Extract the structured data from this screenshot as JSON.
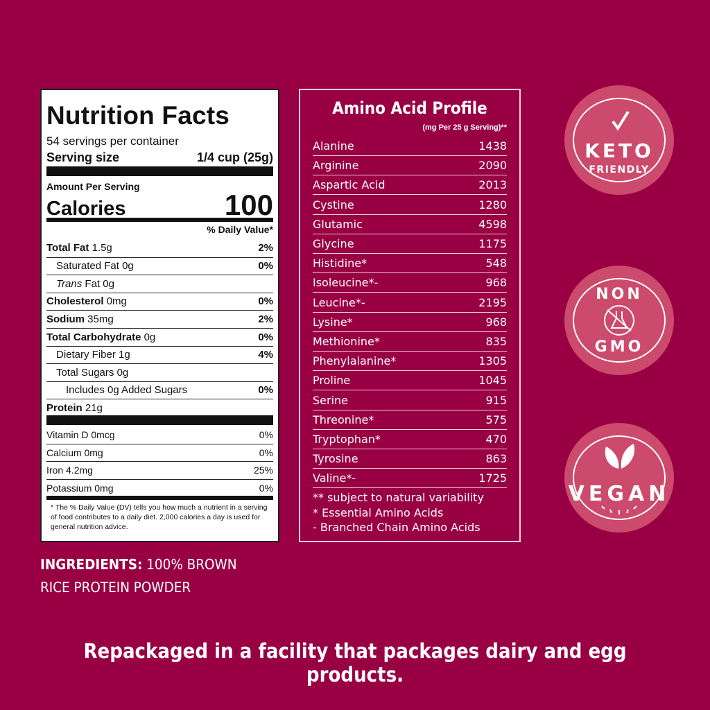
{
  "nutrition": {
    "title": "Nutrition Facts",
    "servings": "54 servings per container",
    "serving_size_label": "Serving size",
    "serving_size": "1/4 cup (25g)",
    "amount_label": "Amount Per Serving",
    "calories_label": "Calories",
    "calories": "100",
    "dv_label": "% Daily Value*",
    "rows": [
      {
        "name": "Total Fat",
        "amount": "1.5g",
        "dv": "2%",
        "bold": true
      },
      {
        "name": "Saturated Fat",
        "amount": "0g",
        "dv": "0%",
        "indent": 1
      },
      {
        "name": "Trans",
        "amount": "Fat 0g",
        "dv": "",
        "indent": 1,
        "italic": true
      },
      {
        "name": "Cholesterol",
        "amount": "0mg",
        "dv": "0%",
        "bold": true
      },
      {
        "name": "Sodium",
        "amount": "35mg",
        "dv": "2%",
        "bold": true
      },
      {
        "name": "Total Carbohydrate",
        "amount": "0g",
        "dv": "0%",
        "bold": true
      },
      {
        "name": "Dietary Fiber",
        "amount": "1g",
        "dv": "4%",
        "indent": 1
      },
      {
        "name": "Total Sugars",
        "amount": "0g",
        "dv": "",
        "indent": 1
      },
      {
        "name": "Includes 0g Added Sugars",
        "amount": "",
        "dv": "0%",
        "indent": 2
      },
      {
        "name": "Protein",
        "amount": "21g",
        "dv": "",
        "bold": true
      }
    ],
    "vitamins": [
      {
        "name": "Vitamin D 0mcg",
        "dv": "0%"
      },
      {
        "name": "Calcium 0mg",
        "dv": "0%"
      },
      {
        "name": "Iron 4.2mg",
        "dv": "25%"
      },
      {
        "name": "Potassium 0mg",
        "dv": "0%"
      }
    ],
    "footnote": "* The % Daily Value (DV) tells you how much a nutrient in a serving of food contributes to a daily diet. 2,000 calories a day is used for general nutrition advice."
  },
  "amino": {
    "title": "Amino Acid Profile",
    "subtitle": "(mg Per 25 g Serving)**",
    "rows": [
      [
        "Alanine",
        "1438"
      ],
      [
        "Arginine",
        "2090"
      ],
      [
        "Aspartic Acid",
        "2013"
      ],
      [
        "Cystine",
        "1280"
      ],
      [
        "Glutamic",
        "4598"
      ],
      [
        "Glycine",
        "1175"
      ],
      [
        "Histidine*",
        "548"
      ],
      [
        "Isoleucine*-",
        "968"
      ],
      [
        "Leucine*-",
        "2195"
      ],
      [
        "Lysine*",
        "968"
      ],
      [
        "Methionine*",
        "835"
      ],
      [
        "Phenylalanine*",
        "1305"
      ],
      [
        "Proline",
        "1045"
      ],
      [
        "Serine",
        "915"
      ],
      [
        "Threonine*",
        "575"
      ],
      [
        "Tryptophan*",
        "470"
      ],
      [
        "Tyrosine",
        "863"
      ],
      [
        "Valine*-",
        "1725"
      ]
    ],
    "notes": [
      "** subject to natural variability",
      "* Essential Amino Acids",
      "- Branched Chain Amino Acids"
    ]
  },
  "badges": {
    "keto": [
      "KETO",
      "FRIENDLY"
    ],
    "nongmo": [
      "NON",
      "GMO"
    ],
    "vegan": "VEGAN"
  },
  "ingredients": {
    "label": "INGREDIENTS:",
    "text1": "100% BROWN",
    "text2": "RICE PROTEIN POWDER"
  },
  "disclaimer": "Repackaged in a facility that packages dairy and egg products.",
  "colors": {
    "background": "#990044",
    "badge": "#cc4a6c"
  }
}
